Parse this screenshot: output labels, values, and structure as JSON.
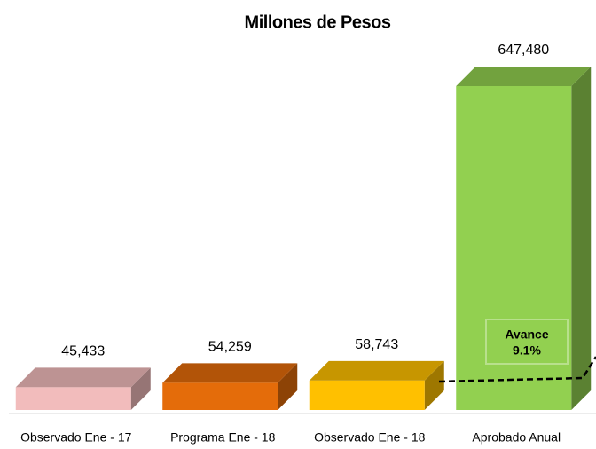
{
  "chart_data": {
    "type": "bar3d",
    "title": "Millones de Pesos",
    "categories": [
      "Observado Ene - 17",
      "Programa Ene - 18",
      "Observado Ene - 18",
      "Aprobado Anual"
    ],
    "values": [
      45433,
      54259,
      58743,
      647480
    ],
    "value_labels": [
      "45,433",
      "54,259",
      "58,743",
      "647,480"
    ],
    "colors": [
      "#f2bcbc",
      "#e46c0a",
      "#ffc000",
      "#92d050"
    ],
    "annotation": {
      "title": "Avance",
      "label": "9.1%"
    }
  }
}
